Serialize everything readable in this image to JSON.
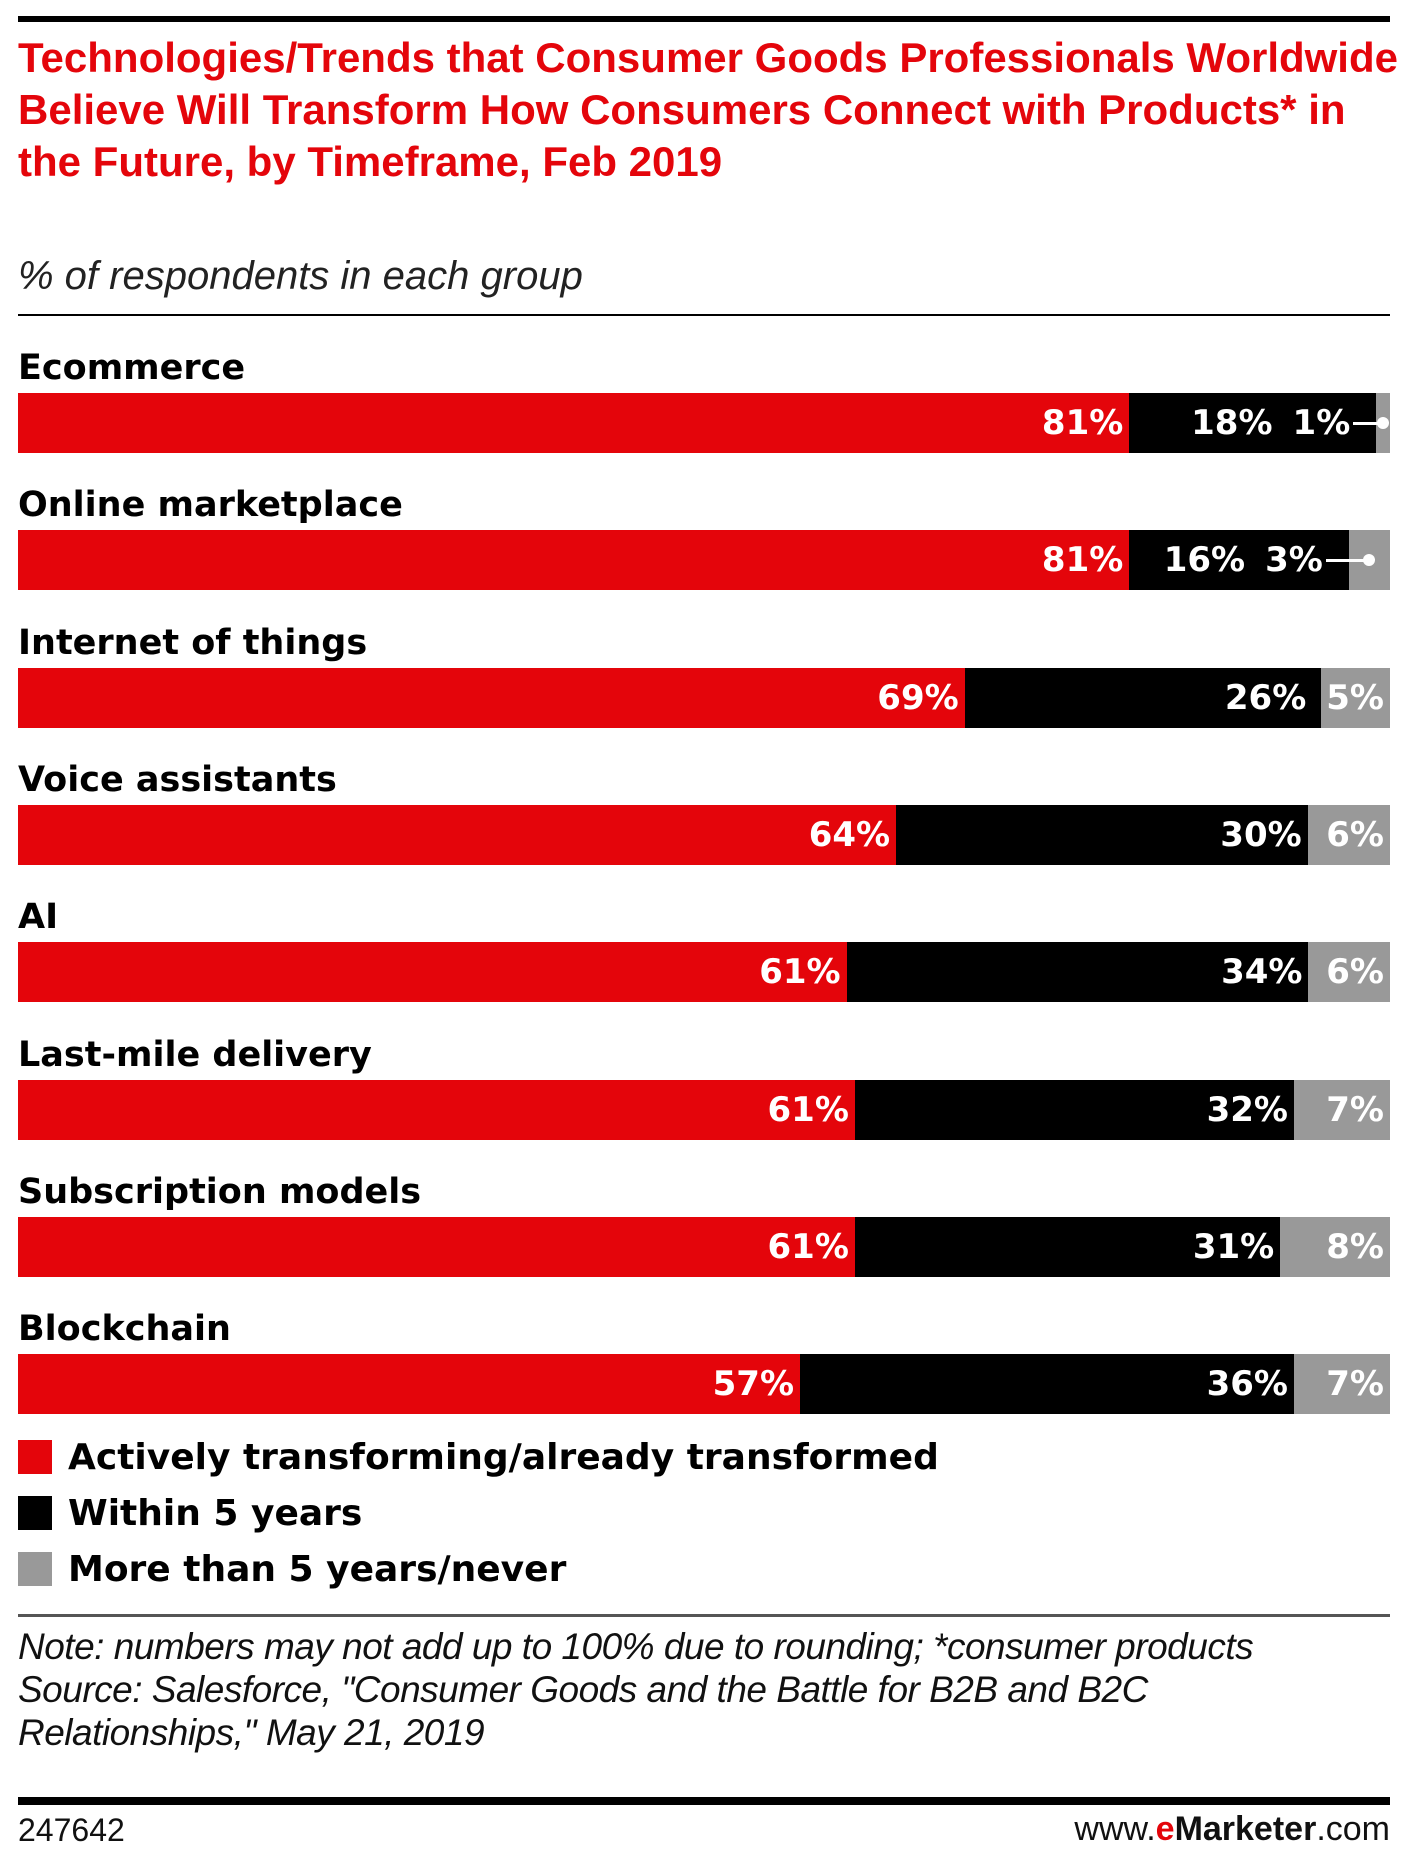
{
  "chart_data": {
    "type": "bar",
    "orientation": "horizontal",
    "stacked": true,
    "title": "Technologies/Trends that Consumer Goods Professionals Worldwide Believe Will Transform How Consumers Connect with Products* in the Future, by Timeframe, Feb 2019",
    "subtitle": "% of respondents in each group",
    "categories": [
      "Ecommerce",
      "Online marketplace",
      "Internet of things",
      "Voice assistants",
      "AI",
      "Last-mile delivery",
      "Subscription models",
      "Blockchain"
    ],
    "series": [
      {
        "name": "Actively transforming/already transformed",
        "color": "#e4050b",
        "values": [
          81,
          81,
          69,
          64,
          61,
          61,
          61,
          57
        ]
      },
      {
        "name": "Within 5 years",
        "color": "#000000",
        "values": [
          18,
          16,
          26,
          30,
          34,
          32,
          31,
          36
        ]
      },
      {
        "name": "More than 5 years/never",
        "color": "#999999",
        "values": [
          1,
          3,
          5,
          6,
          6,
          7,
          8,
          7
        ]
      }
    ],
    "value_suffix": "%",
    "legend_position": "bottom-left",
    "grid": false,
    "note": "Note: numbers may not add up to 100% due to rounding; *consumer products",
    "source": "Source: Salesforce, \"Consumer Goods and the Battle for B2B and B2C Relationships,\" May 21, 2019",
    "chart_id": "247642",
    "brand": {
      "prefix": "www.",
      "e": "e",
      "name": "Marketer",
      ".com": ".com"
    }
  }
}
